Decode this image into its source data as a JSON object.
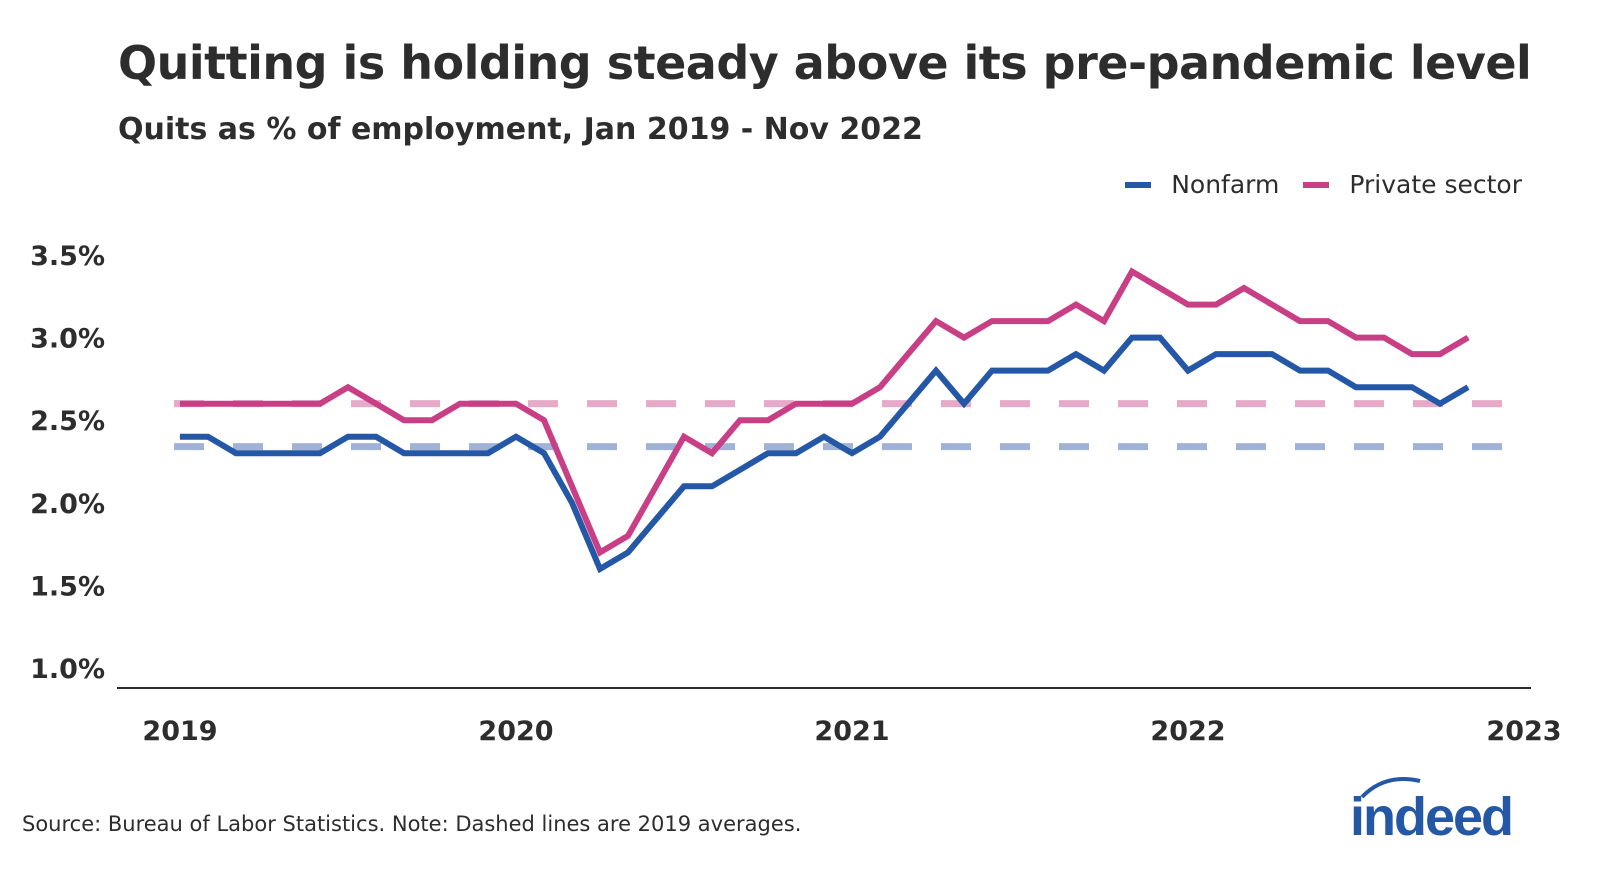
{
  "title": "Quitting is holding steady above its pre-pandemic level",
  "subtitle": "Quits as % of employment, Jan 2019 - Nov 2022",
  "source": "Source: Bureau of Labor Statistics. Note: Dashed lines are 2019 averages.",
  "logo_text": "indeed",
  "colors": {
    "nonfarm": "#2557a7",
    "private": "#c93f86",
    "nonfarm_avg": "#a0b3d7",
    "private_avg": "#e6a9c8",
    "axis": "#2d2d2d"
  },
  "chart_data": {
    "type": "line",
    "title": "Quitting is holding steady above its pre-pandemic level",
    "subtitle": "Quits as % of employment, Jan 2019 - Nov 2022",
    "xlabel": "",
    "ylabel": "",
    "x_start": "2019-01",
    "x_end": "2022-11",
    "x_frequency": "monthly",
    "x_ticks": [
      "2019",
      "2020",
      "2021",
      "2022",
      "2023"
    ],
    "y_ticks": [
      "1.0%",
      "1.5%",
      "2.0%",
      "2.5%",
      "3.0%",
      "3.5%"
    ],
    "y_tick_values": [
      1.0,
      1.5,
      2.0,
      2.5,
      3.0,
      3.5
    ],
    "ylim": [
      0.88,
      3.6
    ],
    "grid": false,
    "legend_position": "top-right",
    "series": [
      {
        "name": "Nonfarm",
        "color": "#2557a7",
        "values": [
          2.4,
          2.4,
          2.3,
          2.3,
          2.3,
          2.3,
          2.4,
          2.4,
          2.3,
          2.3,
          2.3,
          2.3,
          2.4,
          2.3,
          2.0,
          1.6,
          1.7,
          1.9,
          2.1,
          2.1,
          2.2,
          2.3,
          2.3,
          2.4,
          2.3,
          2.4,
          2.6,
          2.8,
          2.6,
          2.8,
          2.8,
          2.8,
          2.9,
          2.8,
          3.0,
          3.0,
          2.8,
          2.9,
          2.9,
          2.9,
          2.8,
          2.8,
          2.7,
          2.7,
          2.7,
          2.6,
          2.7
        ]
      },
      {
        "name": "Private sector",
        "color": "#c93f86",
        "values": [
          2.6,
          2.6,
          2.6,
          2.6,
          2.6,
          2.6,
          2.7,
          2.6,
          2.5,
          2.5,
          2.6,
          2.6,
          2.6,
          2.5,
          2.1,
          1.7,
          1.8,
          2.1,
          2.4,
          2.3,
          2.5,
          2.5,
          2.6,
          2.6,
          2.6,
          2.7,
          2.9,
          3.1,
          3.0,
          3.1,
          3.1,
          3.1,
          3.2,
          3.1,
          3.4,
          3.3,
          3.2,
          3.2,
          3.3,
          3.2,
          3.1,
          3.1,
          3.0,
          3.0,
          2.9,
          2.9,
          3.0
        ]
      }
    ],
    "reference_lines": [
      {
        "series": "Nonfarm",
        "label": "2019 average",
        "value": 2.34,
        "style": "dashed"
      },
      {
        "series": "Private sector",
        "label": "2019 average",
        "value": 2.6,
        "style": "dashed"
      }
    ]
  }
}
